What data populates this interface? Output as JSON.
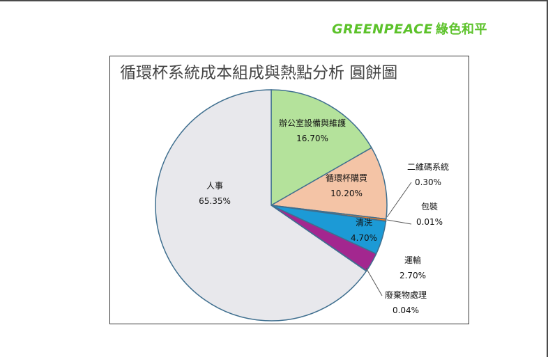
{
  "logo": {
    "brand": "GREENPEACE",
    "chinese": "綠色和平",
    "color": "#5cc22a"
  },
  "chart_data": {
    "type": "pie",
    "title": "循環杯系統成本組成與熱點分析 圓餅圖",
    "start_angle_deg": 0,
    "direction": "clockwise",
    "slices": [
      {
        "label": "辦公室設備與維護",
        "value": 16.7,
        "display": "16.70%",
        "color": "#b4e29b"
      },
      {
        "label": "循環杯購買",
        "value": 10.2,
        "display": "10.20%",
        "color": "#f4c4a6"
      },
      {
        "label": "二維碼系統",
        "value": 0.3,
        "display": "0.30%",
        "color": "#f47b20"
      },
      {
        "label": "包裝",
        "value": 0.01,
        "display": "0.01%",
        "color": "#2f7fbf"
      },
      {
        "label": "清洗",
        "value": 4.7,
        "display": "4.70%",
        "color": "#1c9ad6"
      },
      {
        "label": "運輸",
        "value": 2.7,
        "display": "2.70%",
        "color": "#a3278f"
      },
      {
        "label": "廢棄物處理",
        "value": 0.04,
        "display": "0.04%",
        "color": "#6a2d8a"
      },
      {
        "label": "人事",
        "value": 65.35,
        "display": "65.35%",
        "color": "#e8e8ec"
      }
    ]
  }
}
